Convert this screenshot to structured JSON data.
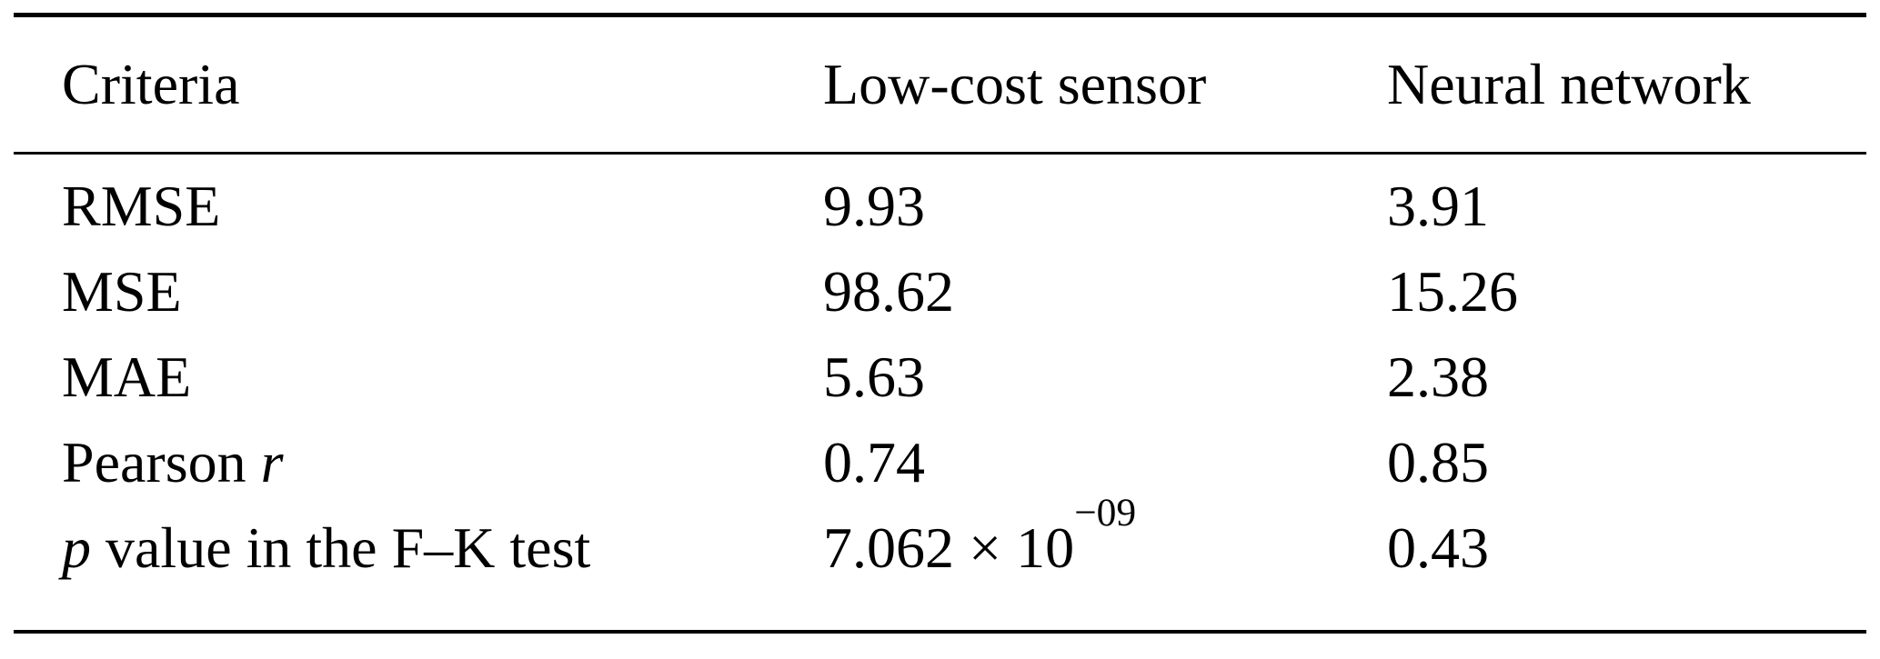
{
  "table": {
    "headers": [
      "Criteria",
      "Low-cost sensor",
      "Neural network"
    ],
    "rows": [
      {
        "criteria": "RMSE",
        "low_cost": "9.93",
        "neural": "3.91"
      },
      {
        "criteria": "MSE",
        "low_cost": "98.62",
        "neural": "15.26"
      },
      {
        "criteria": "MAE",
        "low_cost": "5.63",
        "neural": "2.38"
      },
      {
        "criteria_prefix": "Pearson ",
        "criteria_italic": "r",
        "low_cost": "0.74",
        "neural": "0.85"
      },
      {
        "criteria_italic": "p",
        "criteria_suffix": " value in the F–K test",
        "low_cost_base": "7.062 × 10",
        "low_cost_exponent": "−09",
        "neural": "0.43"
      }
    ],
    "colors": {
      "text": "#000000",
      "background": "#ffffff",
      "rule": "#000000"
    }
  }
}
